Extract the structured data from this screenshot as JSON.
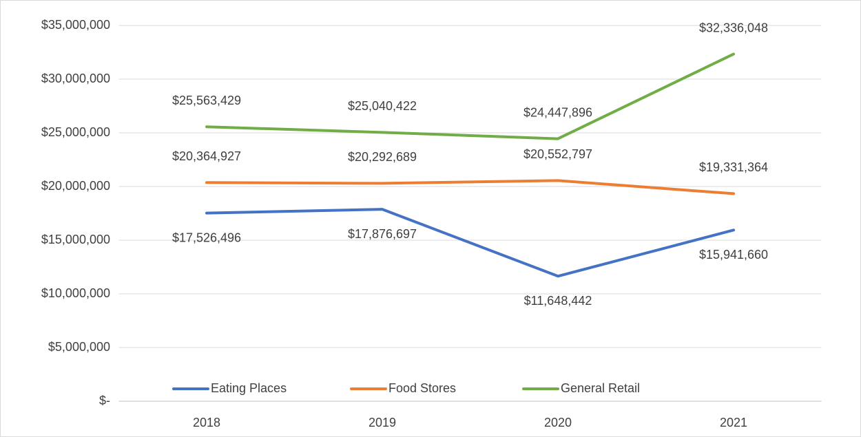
{
  "chart_data": {
    "type": "line",
    "categories": [
      "2018",
      "2019",
      "2020",
      "2021"
    ],
    "series": [
      {
        "name": "Eating Places",
        "color": "#4472c4",
        "values": [
          17526496,
          17876697,
          11648442,
          15941660
        ],
        "value_labels": [
          "$17,526,496",
          "$17,876,697",
          "$11,648,442",
          "$15,941,660"
        ]
      },
      {
        "name": "Food Stores",
        "color": "#ed7d31",
        "values": [
          20364927,
          20292689,
          20552797,
          19331364
        ],
        "value_labels": [
          "$20,364,927",
          "$20,292,689",
          "$20,552,797",
          "$19,331,364"
        ]
      },
      {
        "name": "General Retail",
        "color": "#70ad47",
        "values": [
          25563429,
          25040422,
          24447896,
          32336048
        ],
        "value_labels": [
          "$25,563,429",
          "$25,040,422",
          "$24,447,896",
          "$32,336,048"
        ]
      }
    ],
    "ylim": [
      0,
      35000000
    ],
    "yticks": [
      {
        "value": 0,
        "label": "$-"
      },
      {
        "value": 5000000,
        "label": "$5,000,000"
      },
      {
        "value": 10000000,
        "label": "$10,000,000"
      },
      {
        "value": 15000000,
        "label": "$15,000,000"
      },
      {
        "value": 20000000,
        "label": "$20,000,000"
      },
      {
        "value": 25000000,
        "label": "$25,000,000"
      },
      {
        "value": 30000000,
        "label": "$30,000,000"
      },
      {
        "value": 35000000,
        "label": "$35,000,000"
      }
    ],
    "grid": true,
    "legend": "bottom"
  }
}
